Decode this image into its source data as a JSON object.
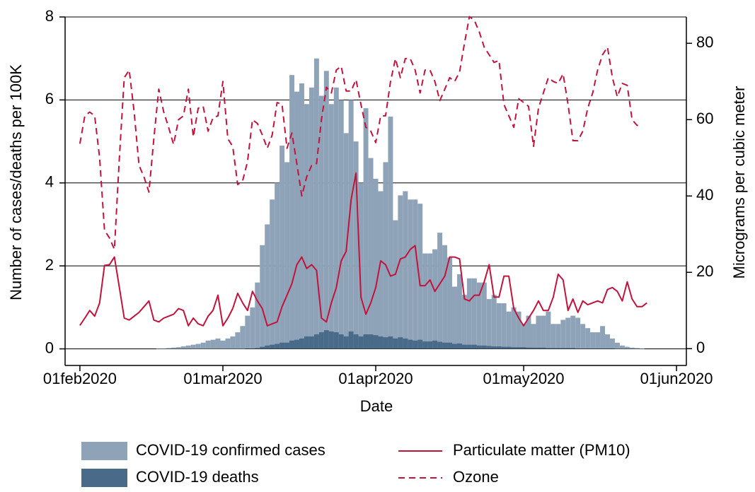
{
  "chart_data": {
    "type": "combo",
    "xlabel": "Date",
    "ylabel": "Number of cases/deaths per 100K",
    "y2label": "Micrograms per cubic meter",
    "x": [
      "2020-02-01",
      "2020-02-02",
      "2020-02-03",
      "2020-02-04",
      "2020-02-05",
      "2020-02-06",
      "2020-02-07",
      "2020-02-08",
      "2020-02-09",
      "2020-02-10",
      "2020-02-11",
      "2020-02-12",
      "2020-02-13",
      "2020-02-14",
      "2020-02-15",
      "2020-02-16",
      "2020-02-17",
      "2020-02-18",
      "2020-02-19",
      "2020-02-20",
      "2020-02-21",
      "2020-02-22",
      "2020-02-23",
      "2020-02-24",
      "2020-02-25",
      "2020-02-26",
      "2020-02-27",
      "2020-02-28",
      "2020-02-29",
      "2020-03-01",
      "2020-03-02",
      "2020-03-03",
      "2020-03-04",
      "2020-03-05",
      "2020-03-06",
      "2020-03-07",
      "2020-03-08",
      "2020-03-09",
      "2020-03-10",
      "2020-03-11",
      "2020-03-12",
      "2020-03-13",
      "2020-03-14",
      "2020-03-15",
      "2020-03-16",
      "2020-03-17",
      "2020-03-18",
      "2020-03-19",
      "2020-03-20",
      "2020-03-21",
      "2020-03-22",
      "2020-03-23",
      "2020-03-24",
      "2020-03-25",
      "2020-03-26",
      "2020-03-27",
      "2020-03-28",
      "2020-03-29",
      "2020-03-30",
      "2020-03-31",
      "2020-04-01",
      "2020-04-02",
      "2020-04-03",
      "2020-04-04",
      "2020-04-05",
      "2020-04-06",
      "2020-04-07",
      "2020-04-08",
      "2020-04-09",
      "2020-04-10",
      "2020-04-11",
      "2020-04-12",
      "2020-04-13",
      "2020-04-14",
      "2020-04-15",
      "2020-04-16",
      "2020-04-17",
      "2020-04-18",
      "2020-04-19",
      "2020-04-20",
      "2020-04-21",
      "2020-04-22",
      "2020-04-23",
      "2020-04-24",
      "2020-04-25",
      "2020-04-26",
      "2020-04-27",
      "2020-04-28",
      "2020-04-29",
      "2020-04-30",
      "2020-05-01",
      "2020-05-02",
      "2020-05-03",
      "2020-05-04",
      "2020-05-05",
      "2020-05-06",
      "2020-05-07",
      "2020-05-08",
      "2020-05-09",
      "2020-05-10",
      "2020-05-11",
      "2020-05-12",
      "2020-05-13",
      "2020-05-14",
      "2020-05-15",
      "2020-05-16",
      "2020-05-17",
      "2020-05-18",
      "2020-05-19",
      "2020-05-20",
      "2020-05-21",
      "2020-05-22",
      "2020-05-23",
      "2020-05-24",
      "2020-05-25",
      "2020-05-26"
    ],
    "series": [
      {
        "name": "COVID-19 confirmed cases",
        "type": "bar",
        "color": "#8fa3b8",
        "values": [
          0,
          0,
          0,
          0,
          0,
          0,
          0,
          0,
          0,
          0,
          0,
          0,
          0,
          0,
          0,
          0,
          0.01,
          0.01,
          0.02,
          0.03,
          0.04,
          0.06,
          0.08,
          0.1,
          0.12,
          0.15,
          0.2,
          0.22,
          0.25,
          0.2,
          0.25,
          0.3,
          0.4,
          0.55,
          0.8,
          1.0,
          1.6,
          2.5,
          3.0,
          3.6,
          4.0,
          4.9,
          4.5,
          6.6,
          6.2,
          6.4,
          5.9,
          6.3,
          7.0,
          6.1,
          6.7,
          5.9,
          6.3,
          6.0,
          5.2,
          6.0,
          5.0,
          4.0,
          5.8,
          4.6,
          4.1,
          3.8,
          4.5,
          5.6,
          3.1,
          3.7,
          3.8,
          3.6,
          3.6,
          3.5,
          2.3,
          2.3,
          2.4,
          2.8,
          2.5,
          2.2,
          1.5,
          1.8,
          1.3,
          1.7,
          1.7,
          1.6,
          1.6,
          1.2,
          1.3,
          1.1,
          1.1,
          0.9,
          1.0,
          0.9,
          0.6,
          0.8,
          0.6,
          0.8,
          0.8,
          0.9,
          0.6,
          0.6,
          0.7,
          0.75,
          0.8,
          0.75,
          0.6,
          0.5,
          0.4,
          0.4,
          0.55,
          0.35,
          0.25,
          0.15,
          0.08,
          0.05,
          0.03,
          0.02,
          0.01,
          0
        ]
      },
      {
        "name": "COVID-19 deaths",
        "type": "bar",
        "color": "#4a6a8a",
        "values": [
          0,
          0,
          0,
          0,
          0,
          0,
          0,
          0,
          0,
          0,
          0,
          0,
          0,
          0,
          0,
          0,
          0,
          0,
          0,
          0,
          0,
          0,
          0,
          0,
          0,
          0,
          0,
          0,
          0,
          0,
          0,
          0,
          0,
          0,
          0.01,
          0.01,
          0.02,
          0.05,
          0.08,
          0.1,
          0.12,
          0.15,
          0.15,
          0.2,
          0.22,
          0.25,
          0.3,
          0.3,
          0.35,
          0.4,
          0.45,
          0.42,
          0.4,
          0.35,
          0.3,
          0.42,
          0.35,
          0.3,
          0.35,
          0.35,
          0.33,
          0.3,
          0.28,
          0.3,
          0.25,
          0.28,
          0.25,
          0.22,
          0.2,
          0.22,
          0.18,
          0.18,
          0.2,
          0.17,
          0.15,
          0.15,
          0.12,
          0.13,
          0.1,
          0.1,
          0.1,
          0.08,
          0.08,
          0.07,
          0.06,
          0.06,
          0.05,
          0.05,
          0.04,
          0.04,
          0.04,
          0.03,
          0.03,
          0.03,
          0.03,
          0.02,
          0.02,
          0.02,
          0.02,
          0.02,
          0.02,
          0.01,
          0.01,
          0.01,
          0.01,
          0.01,
          0.01,
          0.01,
          0.01,
          0,
          0,
          0,
          0,
          0,
          0,
          0
        ]
      },
      {
        "name": "Particulate matter (PM10)",
        "type": "line",
        "axis": "y2",
        "line_style": "solid",
        "color": "#c0143c",
        "values": [
          6.1,
          8,
          10,
          8.5,
          12,
          21.8,
          22,
          24,
          16,
          8,
          7.5,
          8.5,
          9.5,
          11,
          12.5,
          7.5,
          7,
          8,
          8.5,
          9,
          10.5,
          10,
          6,
          8,
          6.5,
          6,
          8.5,
          10,
          14,
          6,
          8,
          10.5,
          14.5,
          12,
          10,
          15,
          12.5,
          10.5,
          6,
          6.5,
          7,
          11,
          14,
          17,
          22,
          24,
          21,
          22,
          20.5,
          8,
          7,
          12,
          16,
          23,
          25.5,
          39,
          46,
          13.5,
          9,
          12,
          16,
          23,
          22,
          19,
          19.5,
          23.5,
          24,
          26,
          27,
          16.5,
          16.5,
          18,
          15,
          17,
          19,
          24,
          24,
          23.5,
          13,
          12.5,
          14,
          14,
          17.5,
          22,
          13.5,
          13.5,
          19,
          19,
          10.5,
          8,
          6,
          8,
          10,
          12.5,
          10,
          10,
          13.5,
          19.5,
          18,
          10,
          13,
          9.5,
          12.5,
          11.5,
          12,
          12.5,
          12,
          15.5,
          16,
          15,
          12.5,
          17.5,
          13,
          11,
          11,
          12
        ]
      },
      {
        "name": "Ozone",
        "type": "line",
        "axis": "y2",
        "line_style": "dashed",
        "color": "#c0143c",
        "values": [
          53.7,
          61,
          62,
          61,
          50,
          31,
          29,
          26,
          50,
          71,
          73,
          62,
          48,
          45,
          41,
          55,
          68,
          62,
          58,
          53.5,
          60,
          61,
          68,
          55.5,
          63,
          63.5,
          57,
          60.5,
          61,
          70,
          55,
          53,
          43,
          44,
          49,
          60,
          59,
          56,
          52.5,
          56,
          64.5,
          64,
          52.5,
          56.5,
          48.5,
          40,
          45,
          48,
          48.5,
          60,
          68.5,
          67,
          73,
          74,
          67.5,
          67.5,
          70.5,
          64,
          58,
          57,
          54,
          61,
          61,
          70,
          76,
          71,
          76,
          76,
          73,
          67,
          73,
          73,
          70,
          65,
          68,
          71,
          70,
          72.5,
          80,
          87,
          86,
          83,
          79,
          77,
          75,
          75.5,
          64,
          61,
          58,
          65.5,
          64.5,
          63.5,
          53,
          63,
          67,
          71,
          70,
          69.5,
          72,
          64,
          54.5,
          54.5,
          57,
          63,
          67,
          73,
          77,
          79,
          71,
          66,
          69.5,
          69,
          60,
          58.5,
          58.5,
          null
        ]
      }
    ],
    "xlim": [
      "2020-01-29",
      "2020-06-03"
    ],
    "xticks": [
      {
        "value": "2020-02-01",
        "label": "01feb2020"
      },
      {
        "value": "2020-03-01",
        "label": "01mar2020"
      },
      {
        "value": "2020-04-01",
        "label": "01apr2020"
      },
      {
        "value": "2020-05-01",
        "label": "01may2020"
      },
      {
        "value": "2020-06-01",
        "label": "01jun2020"
      }
    ],
    "ylim": [
      -0.4,
      8
    ],
    "yticks": [
      0,
      2,
      4,
      6,
      8
    ],
    "y2lim": [
      -4.4,
      86.9
    ],
    "y2ticks": [
      0,
      20,
      40,
      60,
      80
    ],
    "grid": true,
    "legend": "bottom"
  }
}
